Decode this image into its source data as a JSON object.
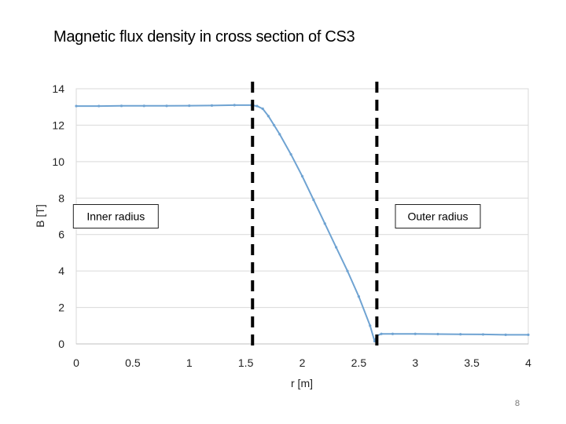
{
  "slide": {
    "title": "Magnetic flux density in cross section of CS3",
    "page_number": "8"
  },
  "chart_data": {
    "type": "line",
    "title": "",
    "xlabel": "r [m]",
    "ylabel": "B [T]",
    "xlim": [
      0,
      4
    ],
    "ylim": [
      0,
      14
    ],
    "x_ticks": [
      0,
      0.5,
      1,
      1.5,
      2,
      2.5,
      3,
      3.5,
      4
    ],
    "x_tick_labels": [
      "0",
      "0.5",
      "1",
      "1.5",
      "2",
      "2.5",
      "3",
      "3.5",
      "4"
    ],
    "y_ticks": [
      0,
      2,
      4,
      6,
      8,
      10,
      12,
      14
    ],
    "y_tick_labels": [
      "0",
      "2",
      "4",
      "6",
      "8",
      "10",
      "12",
      "14"
    ],
    "grid": true,
    "series": [
      {
        "name": "B",
        "color": "#6fa3d2",
        "x": [
          0,
          0.2,
          0.4,
          0.6,
          0.8,
          1.0,
          1.2,
          1.4,
          1.55,
          1.6,
          1.65,
          1.7,
          1.75,
          1.8,
          1.9,
          2.0,
          2.1,
          2.2,
          2.3,
          2.4,
          2.5,
          2.6,
          2.64,
          2.66,
          2.7,
          2.8,
          3.0,
          3.2,
          3.4,
          3.6,
          3.8,
          4.0
        ],
        "y": [
          13.05,
          13.05,
          13.06,
          13.06,
          13.06,
          13.07,
          13.08,
          13.1,
          13.1,
          13.05,
          12.9,
          12.5,
          12.0,
          11.5,
          10.4,
          9.2,
          7.9,
          6.6,
          5.3,
          4.0,
          2.6,
          1.0,
          0.15,
          0.45,
          0.55,
          0.55,
          0.55,
          0.54,
          0.53,
          0.52,
          0.5,
          0.5
        ]
      }
    ],
    "vertical_lines": [
      {
        "x": 1.56,
        "style": "dashed",
        "color": "#000000"
      },
      {
        "x": 2.66,
        "style": "dashed",
        "color": "#000000"
      }
    ],
    "annotations": [
      {
        "text": "Inner radius",
        "x": 0.35,
        "y": 7.0
      },
      {
        "text": "Outer radius",
        "x": 3.2,
        "y": 7.0
      }
    ]
  }
}
